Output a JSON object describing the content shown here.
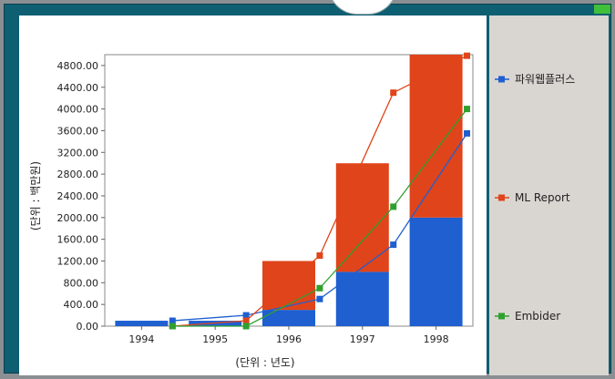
{
  "chart_data": {
    "type": "bar",
    "categories": [
      "1994",
      "1995",
      "1996",
      "1997",
      "1998"
    ],
    "bar_series": [
      {
        "name": "",
        "color": "#1f5fd0",
        "values": [
          100,
          100,
          300,
          1000,
          2000
        ]
      },
      {
        "name": "",
        "color": "#e0441a",
        "values": [
          0,
          0,
          900,
          2000,
          3000
        ]
      }
    ],
    "line_series": [
      {
        "name": "파워웹플러스",
        "color": "#1f5fd0",
        "values": [
          100,
          200,
          500,
          1500,
          3550
        ]
      },
      {
        "name": "ML Report",
        "color": "#e0441a",
        "values": [
          0,
          100,
          1300,
          4300,
          4980
        ]
      },
      {
        "name": "Embider",
        "color": "#2fa02f",
        "values": [
          0,
          0,
          700,
          2200,
          4000
        ]
      }
    ],
    "yticks": [
      "0.00",
      "400.00",
      "800.00",
      "1200.00",
      "1600.00",
      "2000.00",
      "2400.00",
      "2800.00",
      "3200.00",
      "3600.00",
      "4000.00",
      "4400.00",
      "4800.00"
    ],
    "ylim": [
      0,
      5000
    ],
    "xlabel": "(단위 : 년도)",
    "ylabel": "(단위 : 백만원)",
    "legend_position": "right"
  }
}
